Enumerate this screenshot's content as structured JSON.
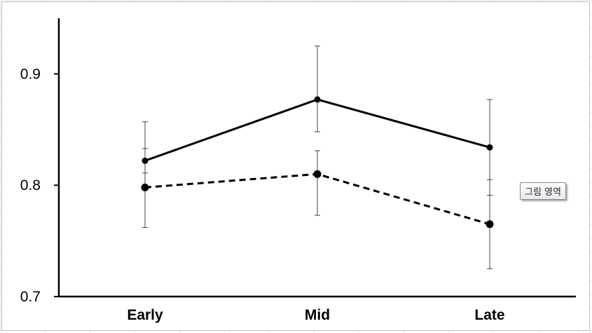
{
  "chart_data": {
    "type": "line",
    "title": "",
    "xlabel": "",
    "ylabel": "",
    "categories": [
      "Early",
      "Mid",
      "Late"
    ],
    "ylim": [
      0.7,
      0.95
    ],
    "yticks": [
      "0.7",
      "0.8",
      "0.9"
    ],
    "grid": false,
    "legend": "none",
    "series": [
      {
        "style": "solid",
        "color": "#000000",
        "values": [
          0.822,
          0.877,
          0.834
        ],
        "err_low": [
          0.811,
          0.848,
          0.791
        ],
        "err_high": [
          0.857,
          0.925,
          0.877
        ]
      },
      {
        "style": "dashed",
        "color": "#000000",
        "values": [
          0.798,
          0.81,
          0.765
        ],
        "err_low": [
          0.762,
          0.773,
          0.725
        ],
        "err_high": [
          0.833,
          0.831,
          0.805
        ]
      }
    ]
  },
  "tooltip": {
    "text": "그림 영역"
  }
}
